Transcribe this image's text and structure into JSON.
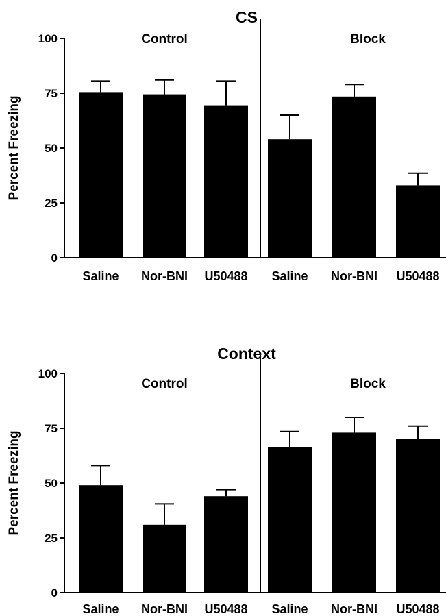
{
  "chart_data": [
    {
      "type": "bar",
      "title": "CS",
      "ylabel": "Percent Freezing",
      "ylim": [
        0,
        100
      ],
      "yticks": [
        0,
        25,
        50,
        75,
        100
      ],
      "groups": [
        {
          "label": "Control",
          "categories": [
            "Saline",
            "Nor-BNI",
            "U50488"
          ]
        },
        {
          "label": "Block",
          "categories": [
            "Saline",
            "Nor-BNI",
            "U50488"
          ]
        }
      ],
      "categories": [
        "Saline",
        "Nor-BNI",
        "U50488",
        "Saline",
        "Nor-BNI",
        "U50488"
      ],
      "values": [
        75.5,
        74.5,
        69.5,
        54,
        73.5,
        33
      ],
      "errors": [
        5,
        6.5,
        11,
        11,
        5.5,
        5.5
      ],
      "grid": false,
      "bar_color": "#000000"
    },
    {
      "type": "bar",
      "title": "Context",
      "ylabel": "Percent Freezing",
      "ylim": [
        0,
        100
      ],
      "yticks": [
        0,
        25,
        50,
        75,
        100
      ],
      "groups": [
        {
          "label": "Control",
          "categories": [
            "Saline",
            "Nor-BNI",
            "U50488"
          ]
        },
        {
          "label": "Block",
          "categories": [
            "Saline",
            "Nor-BNI",
            "U50488"
          ]
        }
      ],
      "categories": [
        "Saline",
        "Nor-BNI",
        "U50488",
        "Saline",
        "Nor-BNI",
        "U50488"
      ],
      "values": [
        49,
        31,
        44,
        66.5,
        73,
        70
      ],
      "errors": [
        9,
        9.5,
        3,
        7,
        7,
        6
      ],
      "grid": false,
      "bar_color": "#000000"
    }
  ]
}
